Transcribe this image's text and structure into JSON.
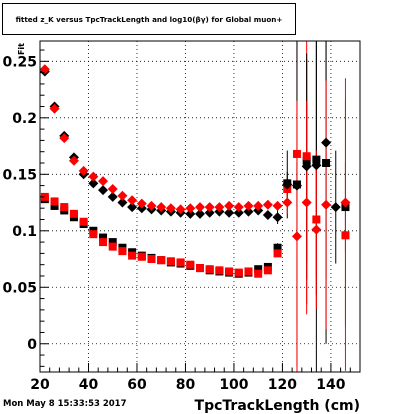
{
  "title": "fitted  z_K  versus TpcTrackLength and log10(βγ) for Global muon+",
  "timestamp": "Mon May  8 15:33:53 2017",
  "chart_data": {
    "type": "scatter",
    "title": "fitted  z_K  versus TpcTrackLength and log10(βγ) for Global muon+",
    "xlabel": "TpcTrackLength (cm)",
    "ylabel": "Fit",
    "xlim": [
      20,
      152
    ],
    "ylim": [
      -0.025,
      0.268
    ],
    "xticks": [
      20,
      40,
      60,
      80,
      100,
      120,
      140
    ],
    "yticks": [
      0,
      0.05,
      0.1,
      0.15,
      0.2,
      0.25
    ],
    "ytick_labels": [
      "0",
      "0.05",
      "0.1",
      "0.15",
      "0.2",
      "0.25"
    ],
    "grid": true,
    "series": [
      {
        "marker": "square",
        "color": "#000000",
        "x": [
          22,
          26,
          30,
          34,
          38,
          42,
          46,
          50,
          54,
          58,
          62,
          66,
          70,
          74,
          78,
          82,
          86,
          90,
          94,
          98,
          102,
          106,
          110,
          114,
          118,
          122,
          126,
          130,
          134,
          138,
          146
        ],
        "y": [
          0.128,
          0.122,
          0.118,
          0.112,
          0.106,
          0.1,
          0.094,
          0.09,
          0.085,
          0.081,
          0.078,
          0.076,
          0.074,
          0.072,
          0.071,
          0.069,
          0.067,
          0.065,
          0.064,
          0.063,
          0.062,
          0.063,
          0.066,
          0.068,
          0.085,
          0.142,
          0.141,
          0.162,
          0.163,
          0.16,
          0.121
        ],
        "err": [
          0,
          0,
          0,
          0,
          0,
          0,
          0,
          0,
          0,
          0,
          0,
          0,
          0,
          0,
          0,
          0,
          0,
          0,
          0,
          0,
          0,
          0,
          0,
          0,
          0.004,
          0.01,
          0.02,
          0.09,
          0.12,
          0.16,
          0.04
        ]
      },
      {
        "marker": "square",
        "color": "#ff0000",
        "x": [
          22,
          26,
          30,
          34,
          38,
          42,
          46,
          50,
          54,
          58,
          62,
          66,
          70,
          74,
          78,
          82,
          86,
          90,
          94,
          98,
          102,
          106,
          110,
          114,
          118,
          122,
          126,
          130,
          134,
          146
        ],
        "y": [
          0.13,
          0.126,
          0.121,
          0.115,
          0.108,
          0.097,
          0.09,
          0.086,
          0.082,
          0.078,
          0.077,
          0.075,
          0.074,
          0.073,
          0.072,
          0.07,
          0.067,
          0.066,
          0.065,
          0.064,
          0.063,
          0.064,
          0.062,
          0.065,
          0.08,
          0.137,
          0.168,
          0.166,
          0.11,
          0.096
        ],
        "err": [
          0,
          0,
          0,
          0,
          0,
          0,
          0,
          0,
          0,
          0,
          0,
          0,
          0,
          0,
          0,
          0,
          0,
          0,
          0,
          0,
          0,
          0,
          0,
          0,
          0,
          0.01,
          0.15,
          0.14,
          0.05,
          0.12
        ]
      },
      {
        "marker": "diamond",
        "color": "#000000",
        "x": [
          22,
          26,
          30,
          34,
          38,
          42,
          46,
          50,
          54,
          58,
          62,
          66,
          70,
          74,
          78,
          82,
          86,
          90,
          94,
          98,
          102,
          106,
          110,
          114,
          118,
          122,
          126,
          130,
          134,
          138,
          142
        ],
        "y": [
          0.241,
          0.21,
          0.184,
          0.165,
          0.15,
          0.142,
          0.136,
          0.13,
          0.125,
          0.121,
          0.12,
          0.119,
          0.118,
          0.117,
          0.116,
          0.115,
          0.115,
          0.116,
          0.117,
          0.116,
          0.116,
          0.117,
          0.118,
          0.114,
          0.112,
          0.141,
          0.14,
          0.157,
          0.158,
          0.178,
          0.121
        ],
        "err": [
          0,
          0,
          0,
          0,
          0,
          0,
          0,
          0,
          0,
          0,
          0,
          0,
          0,
          0,
          0,
          0,
          0,
          0,
          0,
          0,
          0,
          0,
          0,
          0,
          0.006,
          0.03,
          0.16,
          0.1,
          0.24,
          0.12,
          0.05
        ]
      },
      {
        "marker": "diamond",
        "color": "#ff0000",
        "x": [
          22,
          26,
          30,
          34,
          38,
          42,
          46,
          50,
          54,
          58,
          62,
          66,
          70,
          74,
          78,
          82,
          86,
          90,
          94,
          98,
          102,
          106,
          110,
          114,
          118,
          122,
          126,
          130,
          134,
          138,
          146
        ],
        "y": [
          0.243,
          0.208,
          0.182,
          0.162,
          0.153,
          0.148,
          0.144,
          0.137,
          0.131,
          0.127,
          0.124,
          0.122,
          0.121,
          0.12,
          0.119,
          0.12,
          0.121,
          0.121,
          0.121,
          0.122,
          0.121,
          0.122,
          0.122,
          0.123,
          0.122,
          0.125,
          0.095,
          0.125,
          0.101,
          0.123,
          0.125
        ],
        "err": [
          0,
          0,
          0,
          0,
          0,
          0,
          0,
          0,
          0,
          0,
          0,
          0,
          0,
          0,
          0,
          0,
          0,
          0,
          0,
          0,
          0,
          0,
          0,
          0,
          0,
          0.01,
          0.12,
          0.09,
          0.07,
          0.11,
          0.11
        ]
      }
    ]
  }
}
